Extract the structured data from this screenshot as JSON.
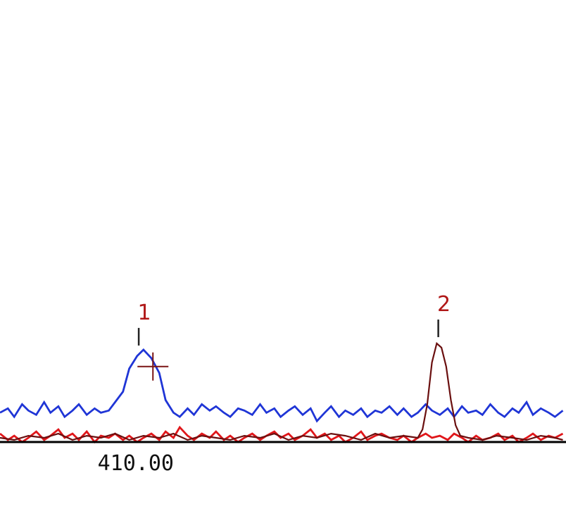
{
  "colors": {
    "background": "#ffffff",
    "series_blue": "#1f35d6",
    "series_red": "#e0161a",
    "series_dark": "#6a0f0f",
    "peak_label": "#b01818",
    "axis": "#000000"
  },
  "chart_data": {
    "type": "line",
    "title": "",
    "xlabel": "",
    "ylabel": "",
    "grid": false,
    "legend": "none",
    "xlim": [
      403.4,
      439.3
    ],
    "ylim": [
      0,
      100
    ],
    "x_ticks": [
      {
        "value": 410.0,
        "label": "410.00"
      }
    ],
    "peaks": [
      {
        "label": "1",
        "x": 412.2,
        "y": 45
      },
      {
        "label": "2",
        "x": 431.2,
        "y": 49
      }
    ],
    "crosshair": {
      "x": 413.1,
      "y": 36
    },
    "series": [
      {
        "color": "#1f35d6",
        "x": [
          403.4,
          403.9,
          404.3,
          404.8,
          405.2,
          405.7,
          406.2,
          406.6,
          407.1,
          407.5,
          408.0,
          408.4,
          408.9,
          409.4,
          409.8,
          410.3,
          410.7,
          411.2,
          411.6,
          412.1,
          412.5,
          413.0,
          413.5,
          413.9,
          414.4,
          414.8,
          415.3,
          415.7,
          416.2,
          416.7,
          417.1,
          417.6,
          418.0,
          418.5,
          418.9,
          419.4,
          419.9,
          420.3,
          420.8,
          421.2,
          421.7,
          422.1,
          422.6,
          423.1,
          423.5,
          424.0,
          424.4,
          424.9,
          425.3,
          425.8,
          426.3,
          426.7,
          427.2,
          427.6,
          428.1,
          428.6,
          429.0,
          429.5,
          429.9,
          430.4,
          430.8,
          431.3,
          431.8,
          432.2,
          432.7,
          433.1,
          433.6,
          434.0,
          434.5,
          435.0,
          435.4,
          435.9,
          436.3,
          436.8,
          437.2,
          437.7,
          438.2,
          438.6,
          439.1
        ],
        "y": [
          14,
          16,
          12,
          18,
          15,
          13,
          19,
          14,
          17,
          12,
          15,
          18,
          13,
          16,
          14,
          15,
          19,
          24,
          35,
          41,
          44,
          40,
          33,
          20,
          14,
          12,
          16,
          13,
          18,
          15,
          17,
          14,
          12,
          16,
          15,
          13,
          18,
          14,
          16,
          12,
          15,
          17,
          13,
          16,
          10,
          14,
          17,
          12,
          15,
          13,
          16,
          12,
          15,
          14,
          17,
          13,
          16,
          12,
          14,
          18,
          15,
          13,
          16,
          12,
          17,
          14,
          15,
          13,
          18,
          14,
          12,
          16,
          14,
          19,
          13,
          16,
          14,
          12,
          15
        ]
      },
      {
        "color": "#e0161a",
        "x": [
          403.4,
          403.9,
          404.3,
          404.8,
          405.2,
          405.7,
          406.2,
          406.6,
          407.1,
          407.5,
          408.0,
          408.4,
          408.9,
          409.4,
          409.8,
          410.3,
          410.7,
          411.2,
          411.6,
          412.1,
          412.5,
          413.0,
          413.5,
          413.9,
          414.4,
          414.8,
          415.3,
          415.7,
          416.2,
          416.7,
          417.1,
          417.6,
          418.0,
          418.5,
          418.9,
          419.4,
          419.9,
          420.3,
          420.8,
          421.2,
          421.7,
          422.1,
          422.6,
          423.1,
          423.5,
          424.0,
          424.4,
          424.9,
          425.3,
          425.8,
          426.3,
          426.7,
          427.2,
          427.6,
          428.1,
          428.6,
          429.0,
          429.5,
          429.9,
          430.4,
          430.8,
          431.3,
          431.8,
          432.2,
          432.7,
          433.1,
          433.6,
          434.0,
          434.5,
          435.0,
          435.4,
          435.9,
          436.3,
          436.8,
          437.2,
          437.7,
          438.2,
          438.6,
          439.1
        ],
        "y": [
          4,
          1,
          3,
          0,
          2,
          5,
          1,
          3,
          6,
          2,
          4,
          1,
          5,
          0,
          3,
          2,
          4,
          1,
          3,
          0,
          2,
          4,
          1,
          5,
          2,
          7,
          3,
          1,
          4,
          2,
          5,
          1,
          3,
          0,
          2,
          4,
          1,
          3,
          5,
          2,
          4,
          1,
          3,
          6,
          2,
          4,
          1,
          3,
          0,
          2,
          5,
          1,
          3,
          4,
          2,
          1,
          3,
          0,
          2,
          4,
          2,
          3,
          1,
          4,
          2,
          0,
          3,
          1,
          2,
          4,
          1,
          3,
          0,
          2,
          4,
          1,
          3,
          2,
          4
        ]
      },
      {
        "color": "#6a0f0f",
        "x": [
          403.4,
          404.3,
          405.2,
          406.2,
          407.1,
          408.0,
          408.9,
          409.8,
          410.7,
          411.6,
          412.5,
          413.5,
          414.4,
          415.3,
          416.2,
          417.1,
          418.0,
          418.9,
          419.9,
          420.8,
          421.7,
          422.6,
          423.5,
          424.4,
          425.3,
          426.3,
          427.2,
          428.1,
          429.0,
          429.9,
          430.2,
          430.5,
          430.8,
          431.1,
          431.4,
          431.7,
          432.0,
          432.3,
          432.6,
          433.1,
          434.0,
          434.9,
          435.9,
          436.8,
          437.7,
          438.6,
          439.1
        ],
        "y": [
          2,
          1,
          3,
          2,
          4,
          1,
          3,
          2,
          4,
          1,
          3,
          2,
          4,
          1,
          3,
          2,
          1,
          3,
          2,
          4,
          1,
          3,
          2,
          4,
          3,
          1,
          4,
          2,
          3,
          2,
          6,
          18,
          38,
          47,
          45,
          36,
          20,
          8,
          3,
          2,
          1,
          3,
          2,
          1,
          3,
          2,
          1
        ]
      }
    ]
  }
}
